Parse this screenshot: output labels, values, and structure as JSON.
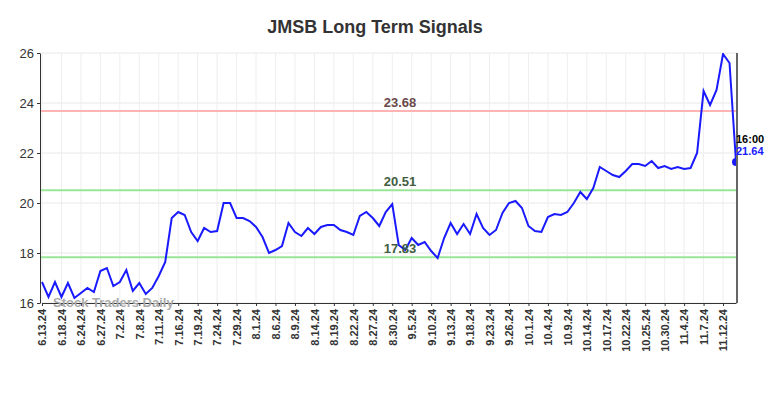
{
  "chart_data": {
    "type": "line",
    "title": "JMSB Long Term Signals",
    "categories": [
      "6.13.24",
      null,
      null,
      "6.18.24",
      null,
      null,
      "6.24.24",
      null,
      null,
      "6.27.24",
      null,
      null,
      "7.2.24",
      null,
      null,
      "7.8.24",
      null,
      null,
      "7.11.24",
      null,
      null,
      "7.16.24",
      null,
      null,
      "7.19.24",
      null,
      null,
      "7.24.24",
      null,
      null,
      "7.29.24",
      null,
      null,
      "8.1.24",
      null,
      null,
      "8.6.24",
      null,
      null,
      "8.9.24",
      null,
      null,
      "8.14.24",
      null,
      null,
      "8.19.24",
      null,
      null,
      "8.22.24",
      null,
      null,
      "8.27.24",
      null,
      null,
      "8.30.24",
      null,
      null,
      "9.5.24",
      null,
      null,
      "9.10.24",
      null,
      null,
      "9.13.24",
      null,
      null,
      "9.18.24",
      null,
      null,
      "9.23.24",
      null,
      null,
      "9.26.24",
      null,
      null,
      "10.1.24",
      null,
      null,
      "10.4.24",
      null,
      null,
      "10.9.24",
      null,
      null,
      "10.14.24",
      null,
      null,
      "10.17.24",
      null,
      null,
      "10.22.24",
      null,
      null,
      "10.25.24",
      null,
      null,
      "10.30.24",
      null,
      null,
      "11.4.24",
      null,
      null,
      "11.7.24",
      null,
      null,
      "11.12.24",
      null,
      null
    ],
    "series": [
      {
        "color": "#1a1aff",
        "marker": "last",
        "values": [
          16.84,
          16.24,
          16.84,
          16.24,
          16.8,
          16.2,
          16.4,
          16.6,
          16.44,
          17.28,
          17.4,
          16.68,
          16.84,
          17.32,
          16.48,
          16.8,
          16.36,
          16.6,
          17.08,
          17.64,
          19.4,
          19.64,
          19.52,
          18.84,
          18.48,
          19.0,
          18.84,
          18.88,
          20.0,
          20.0,
          19.4,
          19.4,
          19.28,
          19.04,
          18.64,
          18.0,
          18.12,
          18.28,
          19.2,
          18.84,
          18.68,
          19.0,
          18.76,
          19.04,
          19.12,
          19.12,
          18.92,
          18.84,
          18.72,
          19.48,
          19.64,
          19.4,
          19.08,
          19.64,
          19.96,
          18.32,
          18.12,
          18.6,
          18.32,
          18.44,
          18.08,
          17.8,
          18.6,
          19.2,
          18.76,
          19.16,
          18.76,
          19.56,
          19.0,
          18.72,
          18.92,
          19.6,
          20.0,
          20.08,
          19.8,
          19.08,
          18.88,
          18.84,
          19.44,
          19.56,
          19.52,
          19.64,
          20.0,
          20.44,
          20.16,
          20.6,
          21.44,
          21.28,
          21.12,
          21.04,
          21.28,
          21.56,
          21.56,
          21.48,
          21.68,
          21.4,
          21.48,
          21.36,
          21.44,
          21.36,
          21.4,
          22.0,
          24.48,
          23.92,
          24.52,
          25.96,
          25.6,
          21.64
        ]
      }
    ],
    "ylim": [
      16,
      26
    ],
    "yticks": [
      16,
      18,
      20,
      22,
      24,
      26
    ],
    "grid": true,
    "reference_lines": [
      {
        "value": 23.68,
        "color": "#ffb3b3"
      },
      {
        "value": 20.51,
        "color": "#99e699"
      },
      {
        "value": 17.83,
        "color": "#99e699"
      }
    ],
    "annotations": [
      {
        "text": "16:00"
      }
    ],
    "watermark": "Stock Traders Daily"
  }
}
